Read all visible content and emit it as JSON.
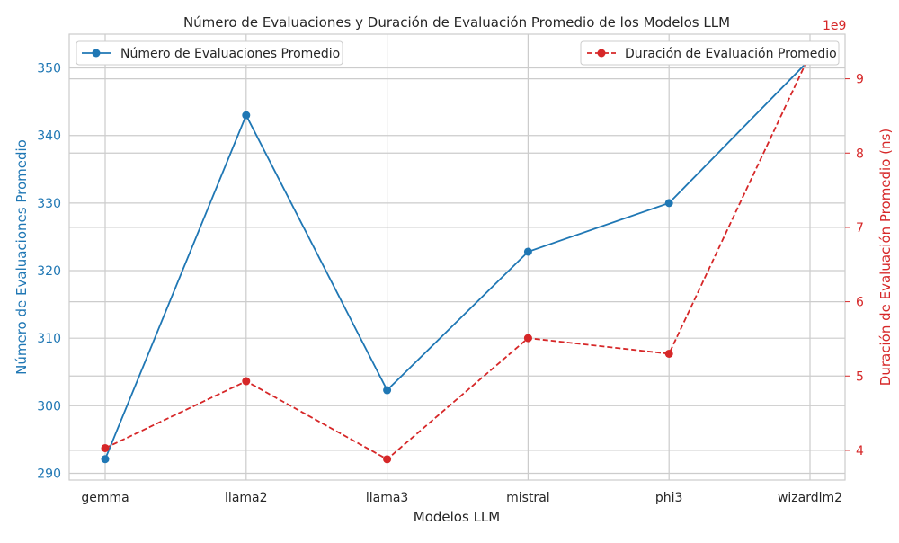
{
  "chart_data": {
    "type": "line",
    "title": "Número de Evaluaciones y Duración de Evaluación Promedio de los Modelos LLM",
    "xlabel": "Modelos LLM",
    "categories": [
      "gemma",
      "llama2",
      "llama3",
      "mistral",
      "phi3",
      "wizardlm2"
    ],
    "left_axis": {
      "label": "Número de Evaluaciones Promedio",
      "ylim": [
        289,
        355
      ],
      "ticks": [
        290,
        300,
        310,
        320,
        330,
        340,
        350
      ],
      "color": "#1f77b4"
    },
    "right_axis": {
      "label": "Duración de Evaluación Promedio (ns)",
      "ylim": [
        3.6,
        9.6
      ],
      "ticks": [
        4,
        5,
        6,
        7,
        8,
        9
      ],
      "offset_label": "1e9",
      "color": "#d62728"
    },
    "series": [
      {
        "name": "Número de Evaluaciones Promedio",
        "axis": "left",
        "color": "#1f77b4",
        "style": "solid",
        "marker": "circle",
        "values": [
          292.1,
          343.0,
          302.3,
          322.8,
          330.0,
          351.3
        ]
      },
      {
        "name": "Duración de Evaluación Promedio",
        "axis": "right",
        "color": "#d62728",
        "style": "dashed",
        "marker": "circle",
        "values": [
          4.03,
          4.93,
          3.88,
          5.51,
          5.3,
          9.33
        ]
      }
    ],
    "legends": [
      {
        "series": 0,
        "placement": "upper-left"
      },
      {
        "series": 1,
        "placement": "upper-right"
      }
    ],
    "grid": true
  }
}
